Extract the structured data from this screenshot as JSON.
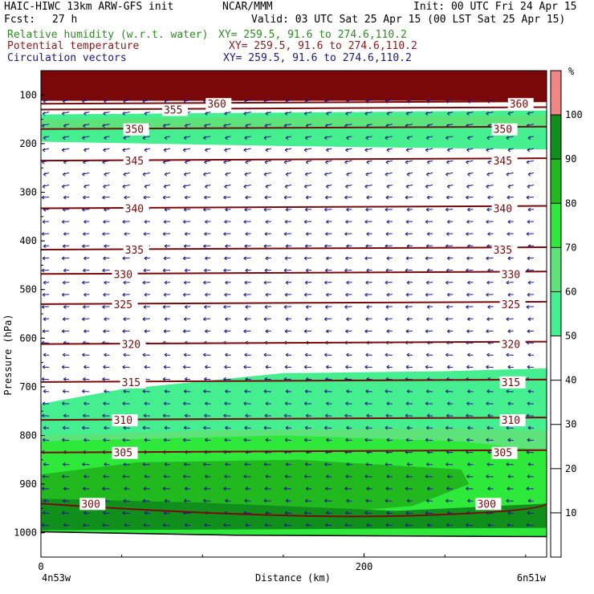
{
  "header": {
    "model": "HAIC-HIWC 13km ARW-GFS init",
    "org": "NCAR/MMM",
    "init": "Init: 00 UTC Fri 24 Apr 15",
    "fcst_label": "Fcst:",
    "fcst_value": "27 h",
    "valid": "Valid: 03 UTC Sat 25 Apr 15 (00 LST Sat 25 Apr 15)"
  },
  "fields": [
    {
      "name": "Relative humidity (w.r.t. water)",
      "xy": "XY= 259.5, 91.6 to 274.6,110.2",
      "color": "#2e8b22"
    },
    {
      "name": "Potential temperature",
      "xy": "XY= 259.5, 91.6 to 274.6,110.2",
      "color": "#8b1a1a"
    },
    {
      "name": "Circulation vectors",
      "xy": "XY= 259.5, 91.6 to 274.6,110.2",
      "color": "#1a1a7a"
    }
  ],
  "chart_data": {
    "type": "heatmap",
    "description_kind": "vertical cross-section",
    "xlabel": "Distance (km)",
    "ylabel": "Pressure (hPa)",
    "xlim": [
      0,
      313
    ],
    "ylim": [
      1050,
      50
    ],
    "x_ticks": [
      0,
      200
    ],
    "y_ticks": [
      100,
      200,
      300,
      400,
      500,
      600,
      700,
      800,
      900,
      1000
    ],
    "x_end_labels": [
      "4n53w",
      "6n51w"
    ],
    "colorbar": {
      "unit": "%",
      "levels": [
        10,
        20,
        30,
        40,
        50,
        60,
        70,
        80,
        90,
        100
      ],
      "colors": [
        "#ffffff",
        "#ffffff",
        "#ffffff",
        "#ffffff",
        "#ffffff",
        "#45ee8f",
        "#5ee37a",
        "#2ee83a",
        "#22b91f",
        "#118f1d",
        "#f08686"
      ]
    },
    "theta_contours": [
      {
        "value": 300,
        "p": 940
      },
      {
        "value": 305,
        "p": 835
      },
      {
        "value": 310,
        "p": 768
      },
      {
        "value": 315,
        "p": 690
      },
      {
        "value": 320,
        "p": 612
      },
      {
        "value": 325,
        "p": 530
      },
      {
        "value": 330,
        "p": 468
      },
      {
        "value": 335,
        "p": 418
      },
      {
        "value": 340,
        "p": 333
      },
      {
        "value": 345,
        "p": 235
      },
      {
        "value": 350,
        "p": 170
      },
      {
        "value": 355,
        "p": 130
      },
      {
        "value": 360,
        "p": 118
      }
    ],
    "theta_label_positions": [
      {
        "value": 300,
        "x_left": 25,
        "x_right": 270
      },
      {
        "value": 305,
        "x_left": 45,
        "x_right": 280
      },
      {
        "value": 310,
        "x_left": 45,
        "x_right": 285
      },
      {
        "value": 315,
        "x_left": 50,
        "x_right": 285
      },
      {
        "value": 320,
        "x_left": 50,
        "x_right": 285
      },
      {
        "value": 325,
        "x_left": 45,
        "x_right": 285
      },
      {
        "value": 330,
        "x_left": 45,
        "x_right": 285
      },
      {
        "value": 335,
        "x_left": 52,
        "x_right": 280
      },
      {
        "value": 340,
        "x_left": 52,
        "x_right": 280
      },
      {
        "value": 345,
        "x_left": 52,
        "x_right": 280
      },
      {
        "value": 350,
        "x_left": 52,
        "x_right": 280
      },
      {
        "value": 355,
        "x_left": 76,
        "x_right": null
      },
      {
        "value": 360,
        "x_left": 103,
        "x_right": 290
      }
    ],
    "rh_bands": [
      {
        "label": "top-saturated",
        "p_top": 50,
        "p_bot": 110,
        "color": "#7a0808"
      },
      {
        "label": "upper-moist",
        "p_top": 140,
        "p_bot": 210,
        "color": "#45ee8f"
      },
      {
        "label": "lower-moist",
        "p_top": 690,
        "p_bot": 800,
        "color": "#45ee8f"
      },
      {
        "label": "boundary-layer",
        "p_top": 800,
        "p_bot": 1000,
        "color": "#2ee83a"
      }
    ],
    "vector_color": "#1a1a8a",
    "vector_direction": "easterly (pointing left)"
  }
}
